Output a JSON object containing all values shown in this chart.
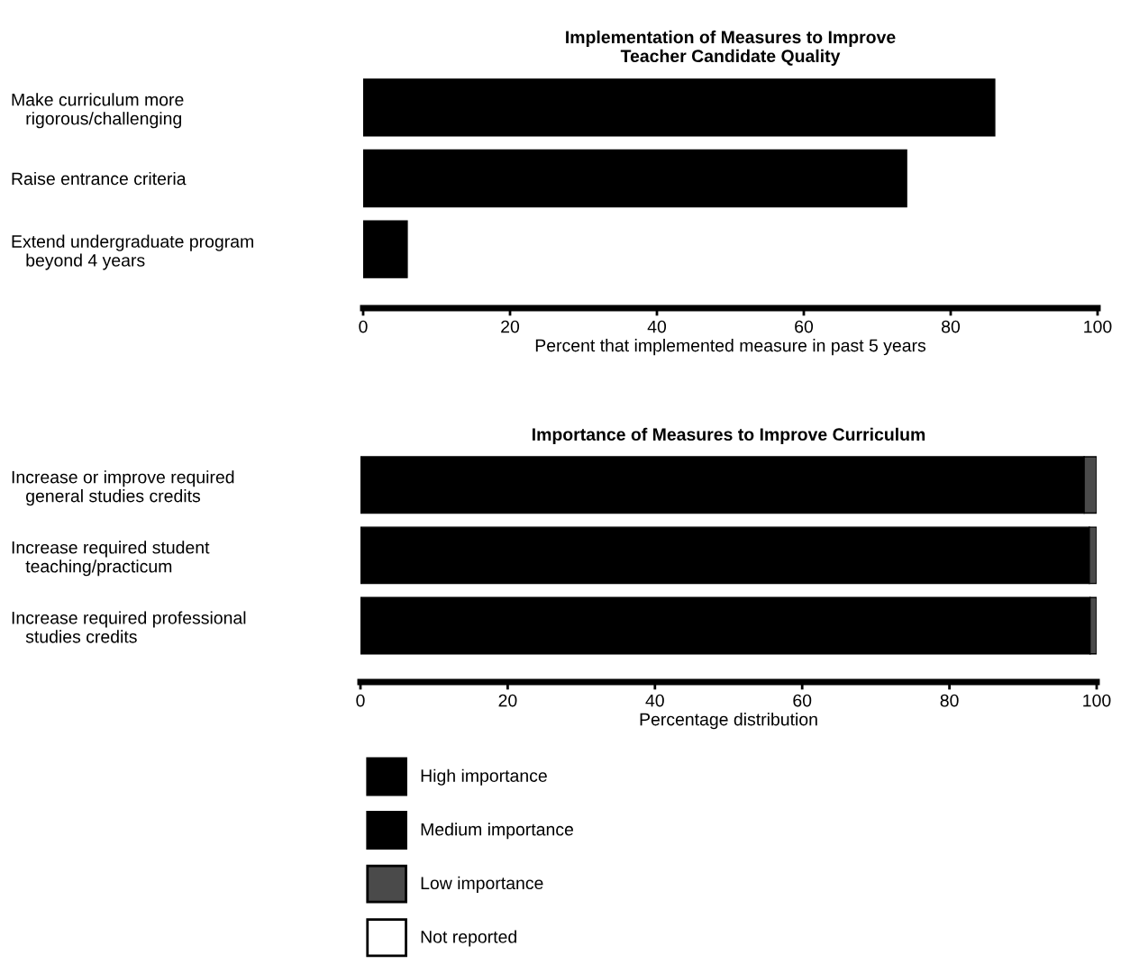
{
  "chart_data": [
    {
      "type": "bar",
      "orientation": "horizontal",
      "title": "Implementation of Measures to Improve\nTeacher Candidate Quality",
      "xlabel": "Percent that implemented measure in past 5 years",
      "categories": [
        "Make curriculum more\n   rigorous/challenging",
        "Raise entrance criteria",
        "Extend undergraduate program\n   beyond 4 years"
      ],
      "values": [
        86,
        74,
        6
      ],
      "color": "#000000",
      "xlim": [
        0,
        100
      ],
      "xticks": [
        0,
        20,
        40,
        60,
        80,
        100
      ],
      "grid": false,
      "legend": false
    },
    {
      "type": "bar",
      "orientation": "horizontal",
      "stacked": true,
      "title": "Importance of Measures to Improve Curriculum",
      "xlabel": "Percentage distribution",
      "categories": [
        "Increase or improve required\n   general studies credits",
        "Increase required student\n   teaching/practicum",
        "Increase required professional\n   studies credits"
      ],
      "series": [
        {
          "name": "High importance",
          "color": "#000000",
          "values": [
            98.3,
            99.0,
            99.1
          ]
        },
        {
          "name": "Medium importance",
          "color": "#000000",
          "values": [
            null,
            null,
            null
          ]
        },
        {
          "name": "Low importance",
          "color": "#4a4a4a",
          "values": [
            1.7,
            1.0,
            0.9
          ]
        },
        {
          "name": "Not reported",
          "color": "#ffffff",
          "values": [
            null,
            null,
            null
          ]
        }
      ],
      "xlim": [
        0,
        100
      ],
      "xticks": [
        0,
        20,
        40,
        60,
        80,
        100
      ],
      "grid": false,
      "legend": "bottom"
    }
  ]
}
